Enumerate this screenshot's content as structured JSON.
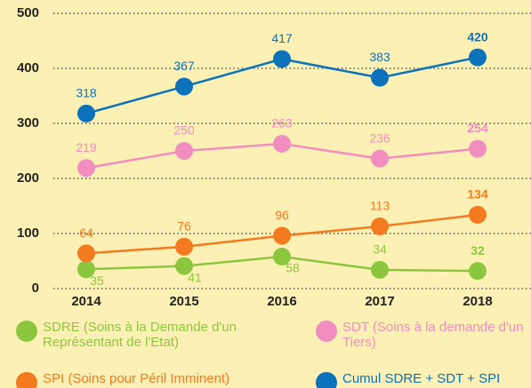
{
  "chart_data": {
    "type": "line",
    "categories": [
      "2014",
      "2015",
      "2016",
      "2017",
      "2018"
    ],
    "series": [
      {
        "name": "SDRE (Soins à la Demande d'un Représentant de l'Etat)",
        "color": "#8cc63f",
        "values": [
          35,
          41,
          58,
          34,
          32
        ]
      },
      {
        "name": "SDT (Soins à la demande d'un Tiers)",
        "color": "#f18dbf",
        "values": [
          219,
          250,
          263,
          236,
          254
        ]
      },
      {
        "name": "SPI (Soins pour Péril Imminent)",
        "color": "#f47a20",
        "values": [
          64,
          76,
          96,
          113,
          134
        ]
      },
      {
        "name": "Cumul SDRE + SDT + SPI",
        "color": "#0b72bb",
        "values": [
          318,
          367,
          417,
          383,
          420
        ]
      }
    ],
    "ylim": [
      0,
      500
    ],
    "yticks": [
      0,
      100,
      200,
      300,
      400,
      500
    ],
    "grid": true,
    "legend": "bottom"
  }
}
